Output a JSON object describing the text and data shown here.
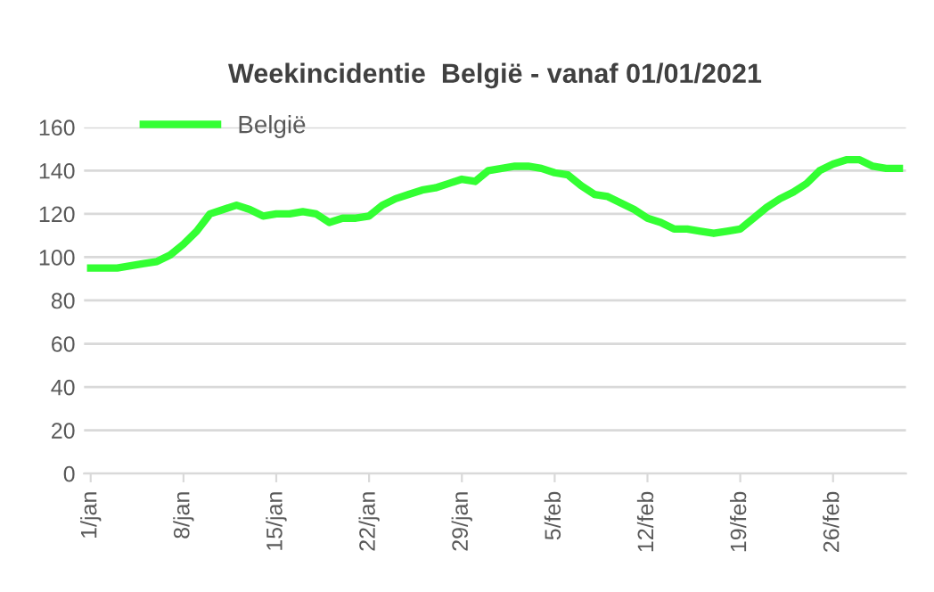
{
  "chart_data": {
    "type": "line",
    "title": "Weekincidentie  België - vanaf 01/01/2021",
    "categories": [
      "1/jan",
      null,
      null,
      null,
      null,
      null,
      null,
      "8/jan",
      null,
      null,
      null,
      null,
      null,
      null,
      "15/jan",
      null,
      null,
      null,
      null,
      null,
      null,
      "22/jan",
      null,
      null,
      null,
      null,
      null,
      null,
      "29/jan",
      null,
      null,
      null,
      null,
      null,
      null,
      "5/feb",
      null,
      null,
      null,
      null,
      null,
      null,
      "12/feb",
      null,
      null,
      null,
      null,
      null,
      null,
      "19/feb",
      null,
      null,
      null,
      null,
      null,
      null,
      "26/feb",
      null,
      null,
      null,
      null,
      null
    ],
    "series": [
      {
        "name": "België",
        "color": "#33ff33",
        "values": [
          95,
          95,
          95,
          96,
          97,
          98,
          101,
          106,
          112,
          120,
          122,
          124,
          122,
          119,
          120,
          120,
          121,
          120,
          116,
          118,
          118,
          119,
          124,
          127,
          129,
          131,
          132,
          134,
          136,
          135,
          140,
          141,
          142,
          142,
          141,
          139,
          138,
          133,
          129,
          128,
          125,
          122,
          118,
          116,
          113,
          113,
          112,
          111,
          112,
          113,
          118,
          123,
          127,
          130,
          134,
          140,
          143,
          145,
          145,
          142,
          141,
          141
        ]
      }
    ],
    "ylim": [
      0,
      160
    ],
    "yticks": [
      0,
      20,
      40,
      60,
      80,
      100,
      120,
      140,
      160
    ],
    "grid": "y",
    "legend": "top left",
    "marker": "none",
    "line_style": "solid"
  }
}
